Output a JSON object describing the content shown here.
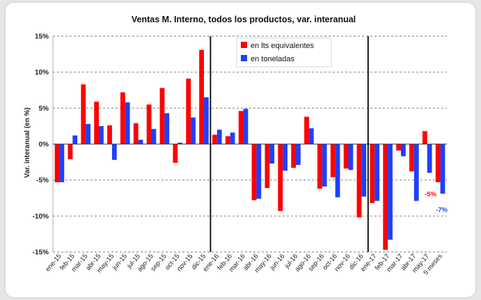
{
  "chart_data": {
    "type": "bar",
    "title": "Ventas M. Interno, todos los productos, var. interanual",
    "xlabel": "",
    "ylabel": "Var. interanual (en %)",
    "ylim": [
      -15,
      15
    ],
    "yticks": [
      "-15%",
      "-10%",
      "-5%",
      "0%",
      "5%",
      "10%",
      "15%"
    ],
    "ytick_values": [
      -15,
      -10,
      -5,
      0,
      5,
      10,
      15
    ],
    "grid": "horizontal-dashed",
    "legend_position": "top-center",
    "categories": [
      "ene-15",
      "feb-15",
      "mar-15",
      "abr-15",
      "may-15",
      "jun-15",
      "jul-15",
      "ago-15",
      "sep-15",
      "oct-15",
      "nov-15",
      "dic-15",
      "ene-16",
      "feb-16",
      "mar-16",
      "abr-16",
      "may-16",
      "jun-16",
      "jul-16",
      "ago-16",
      "sep-16",
      "oct-16",
      "nov-16",
      "dic-16",
      "ene-17",
      "feb-17",
      "mar-17",
      "abr-17",
      "may-17",
      "5 meses"
    ],
    "series": [
      {
        "name": "en lts equivalentes",
        "color": "#ff0000",
        "values": [
          -5.3,
          -2.1,
          8.3,
          5.9,
          2.6,
          7.2,
          2.9,
          5.5,
          7.8,
          -2.6,
          9.1,
          13.1,
          1.3,
          1.1,
          4.6,
          -7.8,
          -6.1,
          -9.3,
          -3.3,
          3.8,
          -6.2,
          -4.6,
          -3.4,
          -10.2,
          -8.2,
          -14.7,
          -0.9,
          -3.8,
          1.8,
          -5.3
        ]
      },
      {
        "name": "en toneladas",
        "color": "#1f3fff",
        "values": [
          -5.3,
          1.2,
          2.8,
          2.5,
          -2.2,
          5.8,
          0.6,
          2.1,
          4.3,
          0.2,
          3.7,
          6.5,
          2.0,
          1.6,
          4.9,
          -7.6,
          -2.7,
          -3.7,
          -2.9,
          2.2,
          -5.9,
          -7.4,
          -3.6,
          -7.3,
          -7.9,
          -13.3,
          -1.7,
          -7.9,
          -4.0,
          -6.9
        ]
      }
    ],
    "separators_after": [
      "dic-15",
      "dic-16"
    ],
    "annotations": [
      {
        "text": "-5%",
        "series": 0,
        "category": "5 meses",
        "color": "#ff0000"
      },
      {
        "text": "-7%",
        "series": 1,
        "category": "5 meses",
        "color": "#1f3fff"
      }
    ]
  }
}
